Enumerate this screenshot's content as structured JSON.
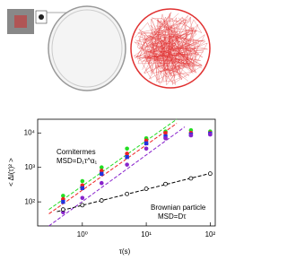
{
  "chart_data": {
    "type": "scatter",
    "ylabel": "< Δl(τ)² >",
    "xlabel": "τ(s)",
    "xlog": true,
    "ylog": true,
    "xlim": [
      0.2,
      120
    ],
    "ylim": [
      20,
      25000
    ],
    "xticks": [
      {
        "value": 1,
        "label": "10⁰"
      },
      {
        "value": 10,
        "label": "10¹"
      },
      {
        "value": 100,
        "label": "10²"
      }
    ],
    "yticks": [
      {
        "value": 100,
        "label": "10²"
      },
      {
        "value": 1000,
        "label": "10³"
      },
      {
        "value": 10000,
        "label": "10⁴"
      }
    ],
    "annotations": [
      "Cornitermes",
      "MSD=D₁τ^α₁",
      "Brownian particle",
      "MSD=Dτ"
    ],
    "x": [
      0.5,
      1,
      2,
      5,
      10,
      20,
      50,
      100
    ],
    "series": [
      {
        "color": "#22dd22",
        "marker": "circle",
        "values": [
          150,
          400,
          1000,
          3500,
          7000,
          11000,
          12000,
          11000
        ]
      },
      {
        "color": "#ee2222",
        "marker": "circle",
        "values": [
          120,
          300,
          800,
          2500,
          6000,
          10000,
          10000,
          10000
        ]
      },
      {
        "color": "#2233dd",
        "marker": "square",
        "values": [
          100,
          250,
          650,
          2000,
          5000,
          8000,
          9000,
          9500
        ]
      },
      {
        "color": "#8822cc",
        "marker": "circle",
        "values": [
          50,
          130,
          350,
          1200,
          3500,
          7000,
          8500,
          9000
        ]
      },
      {
        "color": "#000000",
        "marker": "open-circle",
        "values": [
          60,
          80,
          110,
          170,
          240,
          330,
          480,
          660
        ]
      }
    ],
    "fits": [
      {
        "color": "#22dd22",
        "x": [
          0.3,
          30
        ],
        "values": [
          60,
          25000
        ]
      },
      {
        "color": "#ee2222",
        "x": [
          0.3,
          30
        ],
        "values": [
          45,
          19000
        ]
      },
      {
        "color": "#8822cc",
        "x": [
          0.3,
          40
        ],
        "values": [
          20,
          15000
        ]
      },
      {
        "color": "#000000",
        "x": [
          0.4,
          110
        ],
        "values": [
          52,
          700
        ]
      }
    ]
  }
}
